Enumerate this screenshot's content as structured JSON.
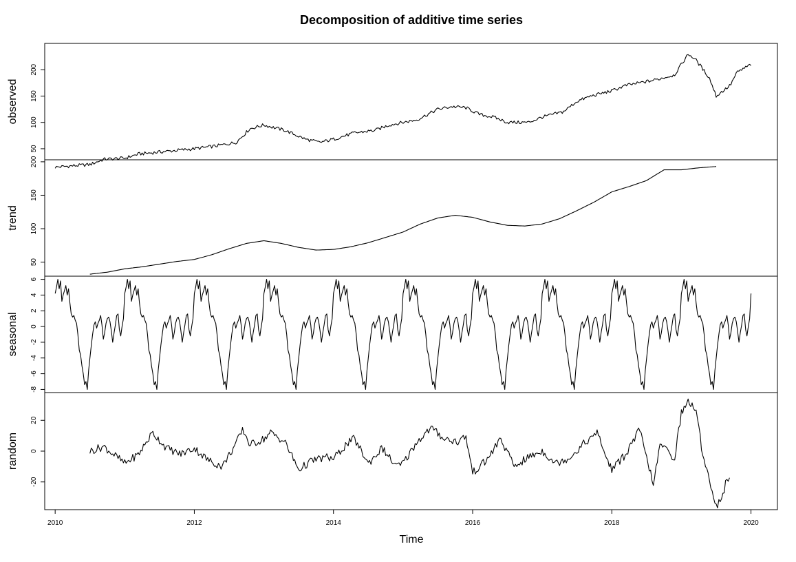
{
  "chart_data": {
    "type": "line",
    "title": "Decomposition of additive time series",
    "xlabel": "Time",
    "xlim": [
      2009.85,
      2020.38
    ],
    "x_ticks": [
      2010,
      2012,
      2014,
      2016,
      2018,
      2020
    ],
    "x_tick_labels": [
      "2010",
      "2012",
      "2014",
      "2016",
      "2018",
      "2020"
    ],
    "frequency": 52,
    "panels": [
      {
        "name": "observed",
        "ylabel": "observed",
        "ylim": [
          29,
          250
        ],
        "y_ticks": [
          50,
          100,
          150,
          200
        ],
        "y_tick_labels": [
          "50",
          "100",
          "150",
          "200"
        ],
        "start": 2010,
        "points": [
          [
            2010.0,
            15
          ],
          [
            2010.5,
            20
          ],
          [
            2010.7,
            30
          ],
          [
            2011.0,
            32
          ],
          [
            2011.2,
            40
          ],
          [
            2011.6,
            45
          ],
          [
            2012.0,
            50
          ],
          [
            2012.3,
            55
          ],
          [
            2012.6,
            62
          ],
          [
            2012.8,
            88
          ],
          [
            2013.0,
            95
          ],
          [
            2013.3,
            85
          ],
          [
            2013.6,
            68
          ],
          [
            2013.8,
            62
          ],
          [
            2014.0,
            68
          ],
          [
            2014.3,
            80
          ],
          [
            2014.6,
            85
          ],
          [
            2014.8,
            95
          ],
          [
            2015.0,
            100
          ],
          [
            2015.2,
            105
          ],
          [
            2015.5,
            125
          ],
          [
            2015.7,
            130
          ],
          [
            2015.9,
            128
          ],
          [
            2016.1,
            115
          ],
          [
            2016.3,
            110
          ],
          [
            2016.5,
            100
          ],
          [
            2016.8,
            100
          ],
          [
            2017.0,
            110
          ],
          [
            2017.3,
            120
          ],
          [
            2017.5,
            140
          ],
          [
            2017.7,
            150
          ],
          [
            2018.0,
            160
          ],
          [
            2018.2,
            170
          ],
          [
            2018.4,
            175
          ],
          [
            2018.6,
            180
          ],
          [
            2018.9,
            190
          ],
          [
            2019.1,
            230
          ],
          [
            2019.2,
            220
          ],
          [
            2019.4,
            185
          ],
          [
            2019.5,
            150
          ],
          [
            2019.7,
            170
          ],
          [
            2019.8,
            195
          ],
          [
            2020.0,
            210
          ]
        ]
      },
      {
        "name": "trend",
        "ylabel": "trend",
        "ylim": [
          29,
          203
        ],
        "y_ticks": [
          50,
          100,
          150,
          200
        ],
        "y_tick_labels": [
          "50",
          "100",
          "150",
          "200"
        ],
        "start": 2010.5,
        "points": [
          [
            2010.5,
            32
          ],
          [
            2010.75,
            35
          ],
          [
            2011.0,
            40
          ],
          [
            2011.25,
            43
          ],
          [
            2011.5,
            47
          ],
          [
            2011.75,
            51
          ],
          [
            2012.0,
            54
          ],
          [
            2012.25,
            61
          ],
          [
            2012.5,
            70
          ],
          [
            2012.75,
            78
          ],
          [
            2013.0,
            82
          ],
          [
            2013.25,
            78
          ],
          [
            2013.5,
            72
          ],
          [
            2013.75,
            68
          ],
          [
            2014.0,
            69
          ],
          [
            2014.25,
            73
          ],
          [
            2014.5,
            79
          ],
          [
            2014.75,
            87
          ],
          [
            2015.0,
            95
          ],
          [
            2015.25,
            107
          ],
          [
            2015.5,
            116
          ],
          [
            2015.75,
            120
          ],
          [
            2016.0,
            117
          ],
          [
            2016.25,
            110
          ],
          [
            2016.5,
            105
          ],
          [
            2016.75,
            104
          ],
          [
            2017.0,
            107
          ],
          [
            2017.25,
            115
          ],
          [
            2017.5,
            127
          ],
          [
            2017.75,
            140
          ],
          [
            2018.0,
            155
          ],
          [
            2018.25,
            163
          ],
          [
            2018.5,
            172
          ],
          [
            2018.75,
            188
          ],
          [
            2019.0,
            188
          ],
          [
            2019.25,
            191
          ],
          [
            2019.5,
            193
          ]
        ]
      },
      {
        "name": "seasonal",
        "ylabel": "seasonal",
        "ylim": [
          -8.4,
          6.4
        ],
        "y_ticks": [
          -8,
          -6,
          -4,
          -2,
          0,
          2,
          4,
          6
        ],
        "y_tick_labels": [
          "-8",
          "-6",
          "-4",
          "-2",
          "0",
          "2",
          "4",
          "6"
        ],
        "start": 2010,
        "cycle_values": [
          4.2,
          5.0,
          6.0,
          4.8,
          5.8,
          3.2,
          4.0,
          4.6,
          5.2,
          4.0,
          4.8,
          3.0,
          1.6,
          1.2,
          1.4,
          0.8,
          0.4,
          -1.0,
          -3.0,
          -3.6,
          -5.0,
          -6.0,
          -7.4,
          -7.0,
          -8.0,
          -5.6,
          -4.0,
          -2.4,
          -1.0,
          0.2,
          0.6,
          -0.2,
          0.4,
          0.8,
          1.4,
          0.2,
          -1.6,
          -0.8,
          0.4,
          1.0,
          1.2,
          0.6,
          -0.6,
          -2.0,
          -0.8,
          0.2,
          1.4,
          1.6,
          -0.4,
          -1.2,
          0.0,
          1.0
        ],
        "cycles": 10
      },
      {
        "name": "random",
        "ylabel": "random",
        "ylim": [
          -38,
          38
        ],
        "y_ticks": [
          -20,
          0,
          20
        ],
        "y_tick_labels": [
          "-20",
          "0",
          "20"
        ],
        "start": 2010.5,
        "points": [
          [
            2010.5,
            0
          ],
          [
            2010.7,
            3
          ],
          [
            2011.0,
            -8
          ],
          [
            2011.2,
            -2
          ],
          [
            2011.4,
            12
          ],
          [
            2011.6,
            2
          ],
          [
            2011.8,
            -2
          ],
          [
            2012.0,
            2
          ],
          [
            2012.2,
            -6
          ],
          [
            2012.4,
            -10
          ],
          [
            2012.6,
            5
          ],
          [
            2012.7,
            14
          ],
          [
            2012.8,
            4
          ],
          [
            2013.0,
            8
          ],
          [
            2013.1,
            12
          ],
          [
            2013.3,
            6
          ],
          [
            2013.5,
            -12
          ],
          [
            2013.7,
            -6
          ],
          [
            2013.9,
            -4
          ],
          [
            2014.0,
            -5
          ],
          [
            2014.2,
            5
          ],
          [
            2014.3,
            8
          ],
          [
            2014.5,
            -8
          ],
          [
            2014.7,
            2
          ],
          [
            2014.9,
            -10
          ],
          [
            2015.0,
            -8
          ],
          [
            2015.2,
            6
          ],
          [
            2015.4,
            15
          ],
          [
            2015.6,
            8
          ],
          [
            2015.8,
            6
          ],
          [
            2015.9,
            10
          ],
          [
            2016.0,
            -14
          ],
          [
            2016.2,
            -6
          ],
          [
            2016.4,
            8
          ],
          [
            2016.6,
            -10
          ],
          [
            2016.8,
            -4
          ],
          [
            2017.0,
            0
          ],
          [
            2017.2,
            -8
          ],
          [
            2017.4,
            -4
          ],
          [
            2017.6,
            5
          ],
          [
            2017.8,
            12
          ],
          [
            2017.9,
            -2
          ],
          [
            2018.0,
            -12
          ],
          [
            2018.2,
            -2
          ],
          [
            2018.4,
            14
          ],
          [
            2018.5,
            -5
          ],
          [
            2018.6,
            -21
          ],
          [
            2018.7,
            5
          ],
          [
            2018.8,
            0
          ],
          [
            2018.9,
            -5
          ],
          [
            2019.0,
            25
          ],
          [
            2019.1,
            32
          ],
          [
            2019.2,
            28
          ],
          [
            2019.3,
            0
          ],
          [
            2019.4,
            -18
          ],
          [
            2019.5,
            -36
          ],
          [
            2019.6,
            -28
          ],
          [
            2019.65,
            -18
          ],
          [
            2019.7,
            -20
          ]
        ]
      }
    ]
  }
}
